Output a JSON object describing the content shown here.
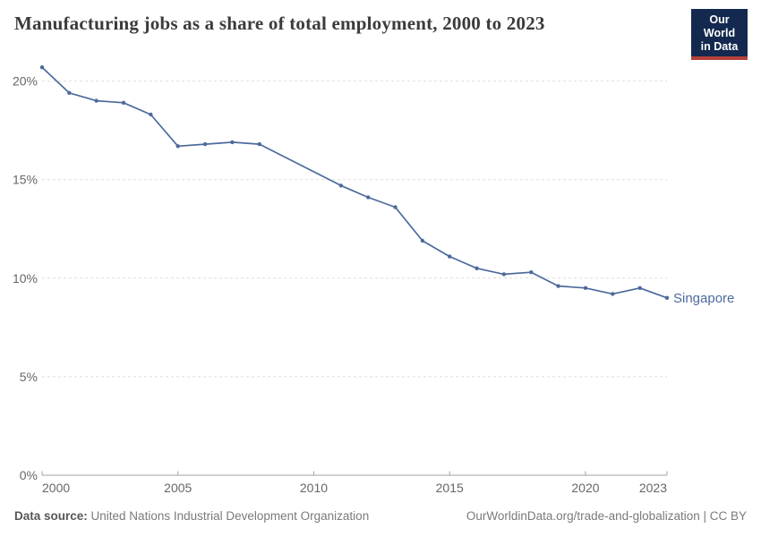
{
  "header": {
    "title": "Manufacturing jobs as a share of total employment, 2000 to 2023",
    "logo": {
      "line1": "Our World",
      "line2": "in Data",
      "bg_color": "#13294f",
      "accent_color": "#b5403a"
    }
  },
  "chart_data": {
    "type": "line",
    "title": "Manufacturing jobs as a share of total employment, 2000 to 2023",
    "xlabel": "",
    "ylabel": "",
    "xlim": [
      2000,
      2023
    ],
    "ylim": [
      0,
      21
    ],
    "yticks": [
      0,
      5,
      10,
      15,
      20
    ],
    "ytick_suffix": "%",
    "xticks": [
      2000,
      2005,
      2010,
      2015,
      2020,
      2023
    ],
    "grid": "horizontal-dashed",
    "legend_position": "line-end-label",
    "series": [
      {
        "name": "Singapore",
        "color": "#4C6A9C",
        "points": [
          {
            "year": 2000,
            "value": 20.7
          },
          {
            "year": 2001,
            "value": 19.4
          },
          {
            "year": 2002,
            "value": 19.0
          },
          {
            "year": 2003,
            "value": 18.9
          },
          {
            "year": 2004,
            "value": 18.3
          },
          {
            "year": 2005,
            "value": 16.7
          },
          {
            "year": 2006,
            "value": 16.8
          },
          {
            "year": 2007,
            "value": 16.9
          },
          {
            "year": 2008,
            "value": 16.8
          },
          {
            "year": 2009,
            "value": null
          },
          {
            "year": 2010,
            "value": null
          },
          {
            "year": 2011,
            "value": 14.7
          },
          {
            "year": 2012,
            "value": 14.1
          },
          {
            "year": 2013,
            "value": 13.6
          },
          {
            "year": 2014,
            "value": 11.9
          },
          {
            "year": 2015,
            "value": 11.1
          },
          {
            "year": 2016,
            "value": 10.5
          },
          {
            "year": 2017,
            "value": 10.2
          },
          {
            "year": 2018,
            "value": 10.3
          },
          {
            "year": 2019,
            "value": 9.6
          },
          {
            "year": 2020,
            "value": 9.5
          },
          {
            "year": 2021,
            "value": 9.2
          },
          {
            "year": 2022,
            "value": 9.5
          },
          {
            "year": 2023,
            "value": 9.0
          }
        ]
      }
    ],
    "colors": {
      "gridline": "#dedede",
      "axis": "#a3a3a3",
      "tick_label": "#666666"
    }
  },
  "footer": {
    "source_label": "Data source:",
    "source_text": " United Nations Industrial Development Organization",
    "credit": "OurWorldinData.org/trade-and-globalization | CC BY"
  }
}
